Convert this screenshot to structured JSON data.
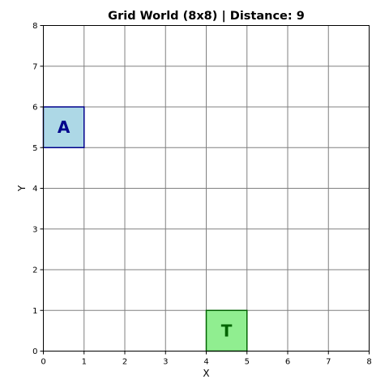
{
  "title": "Grid World (8x8) | Distance: 9",
  "chart_data": {
    "type": "scatter",
    "title": "Grid World (8x8) | Distance: 9",
    "xlabel": "X",
    "ylabel": "Y",
    "xlim": [
      0,
      8
    ],
    "ylim": [
      0,
      8
    ],
    "grid": true,
    "xticks": [
      "0",
      "1",
      "2",
      "3",
      "4",
      "5",
      "6",
      "7",
      "8"
    ],
    "yticks": [
      "0",
      "1",
      "2",
      "3",
      "4",
      "5",
      "6",
      "7",
      "8"
    ],
    "cells": [
      {
        "label": "A",
        "x": 0,
        "y": 5,
        "fill": "#add8e6",
        "edge": "#00008b",
        "text_color": "#00008b"
      },
      {
        "label": "T",
        "x": 4,
        "y": 0,
        "fill": "#90ee90",
        "edge": "#006400",
        "text_color": "#006400"
      }
    ]
  }
}
